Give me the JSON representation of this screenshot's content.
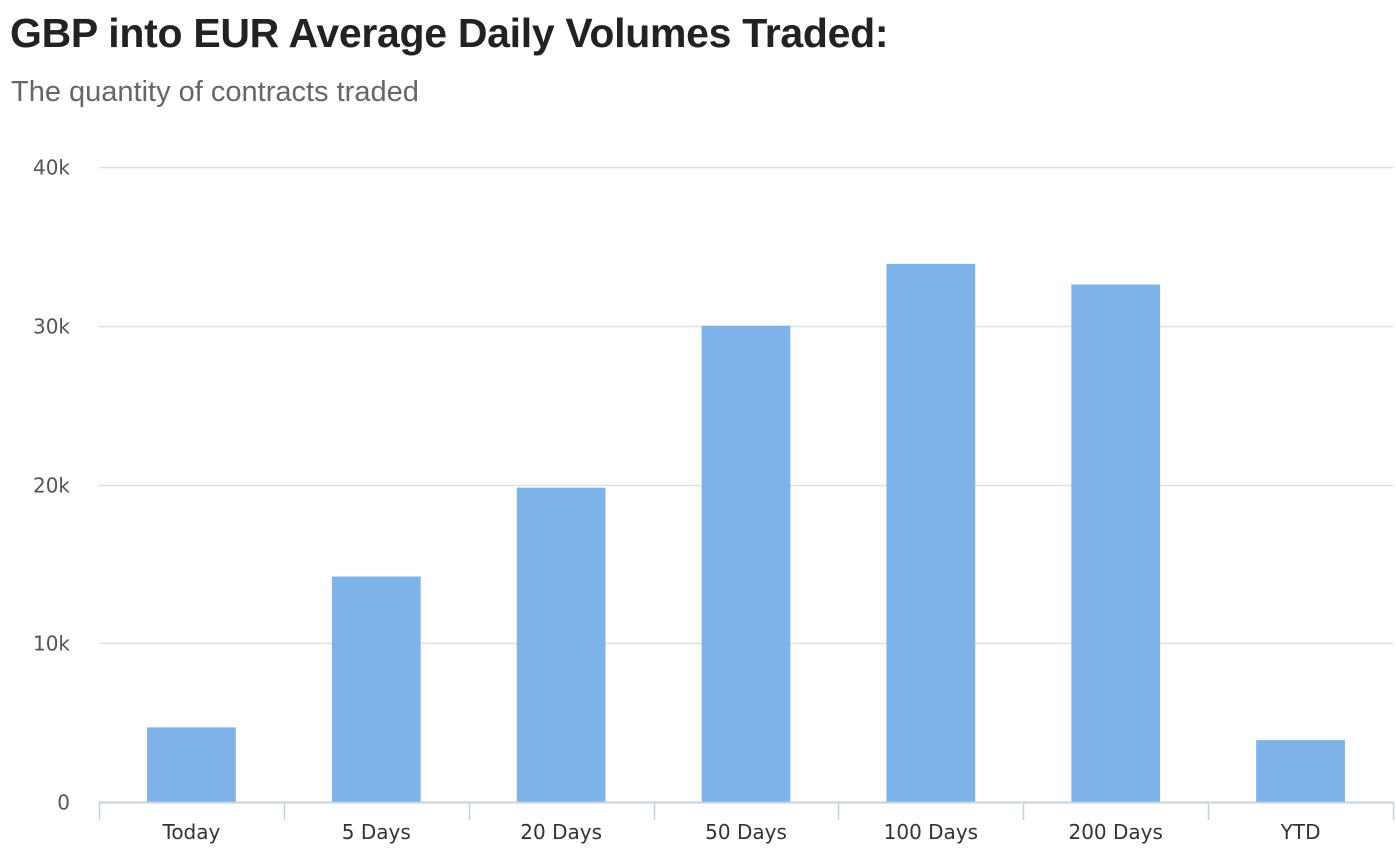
{
  "chart_data": {
    "type": "bar",
    "title": "GBP into EUR Average Daily Volumes Traded:",
    "subtitle": "The quantity of contracts traded",
    "categories": [
      "Today",
      "5 Days",
      "20 Days",
      "50 Days",
      "100 Days",
      "200 Days",
      "YTD"
    ],
    "series": [
      {
        "values": [
          4700,
          14200,
          19800,
          30000,
          33900,
          32600,
          3900
        ]
      }
    ],
    "ylim": [
      0,
      40000
    ],
    "yticks": [
      0,
      10000,
      20000,
      30000,
      40000
    ],
    "ytick_labels": [
      "0",
      "10k",
      "20k",
      "30k",
      "40k"
    ],
    "xlabel": "",
    "ylabel": "",
    "grid": true,
    "legend": "none",
    "colors": {
      "bar": "#7eb3e9",
      "grid": "#e0e0e0",
      "axis": "#c7d2df"
    }
  }
}
